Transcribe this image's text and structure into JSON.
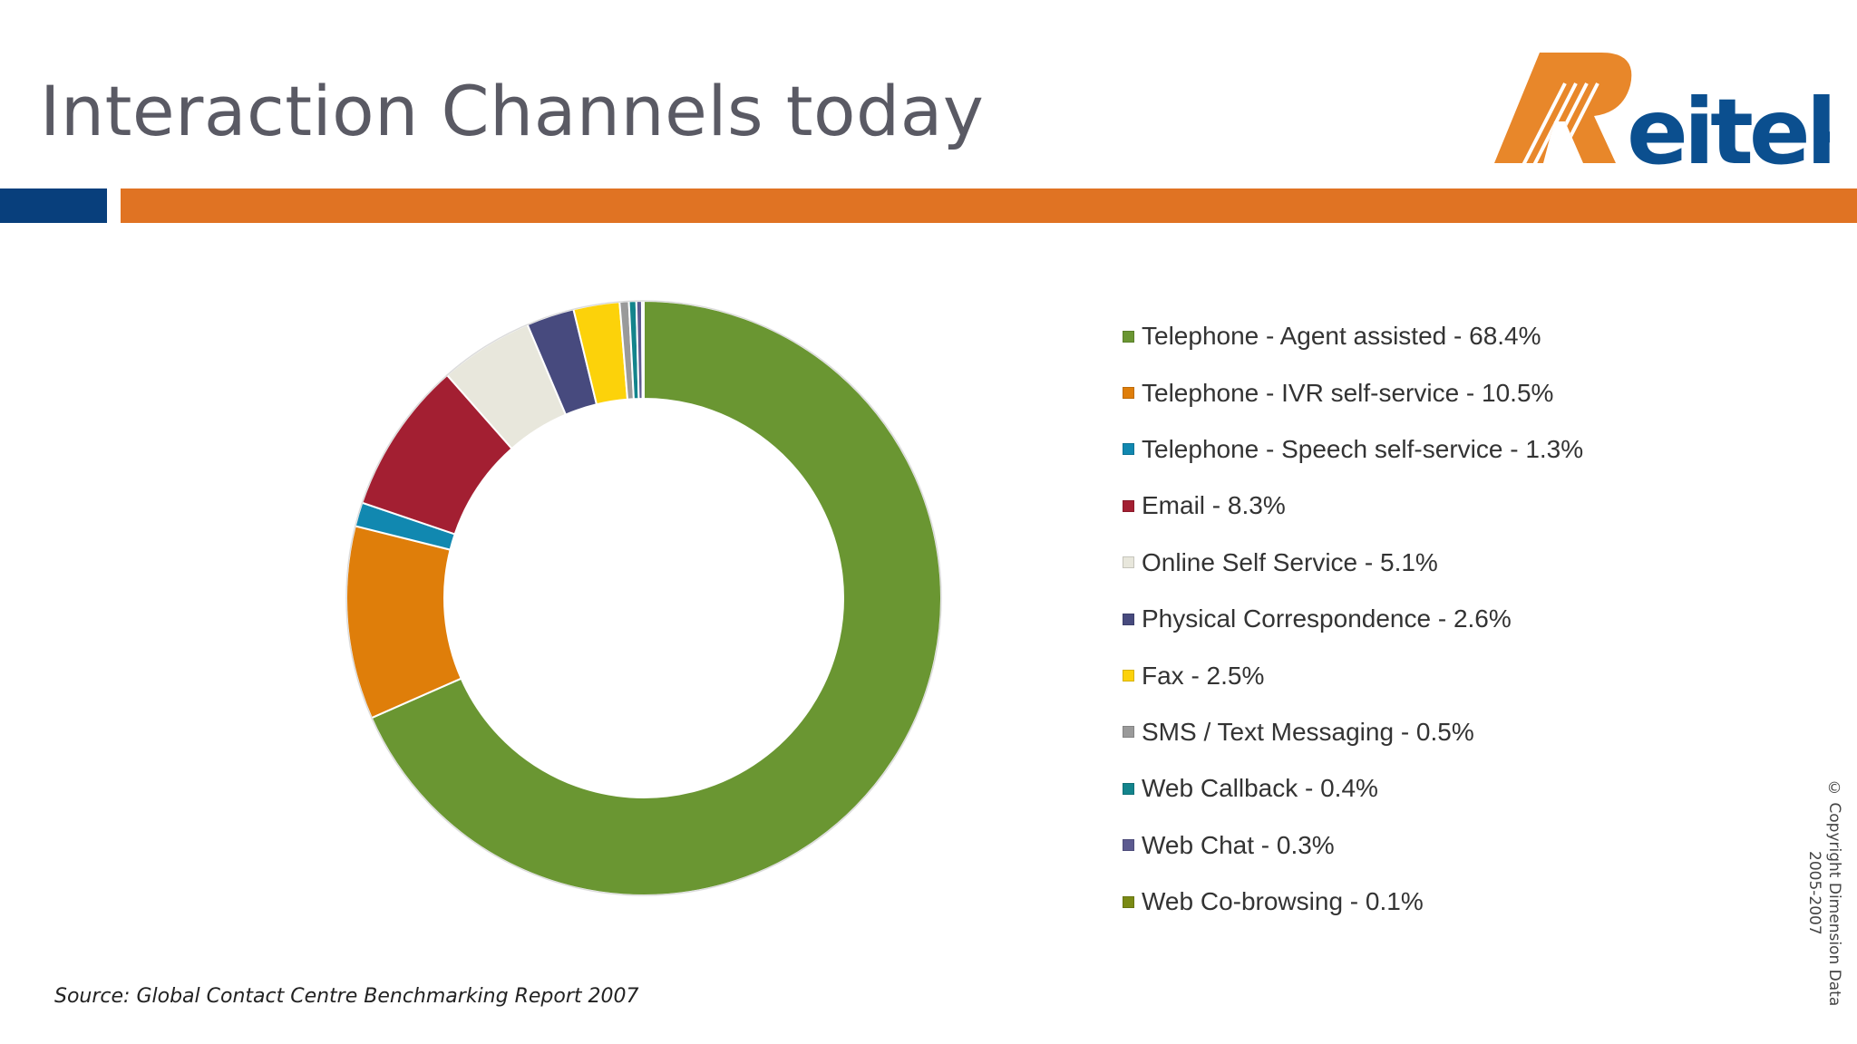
{
  "slide": {
    "title": "Interaction Channels today",
    "source": "Source: Global Contact Centre Benchmarking Report 2007",
    "copyright_line1": "© Copyright Dimension Data",
    "copyright_line2": "2005-2007"
  },
  "logo": {
    "text": "Reitek",
    "colors": {
      "orange": "#e8872a",
      "blue": "#0b4f8f"
    }
  },
  "colors": {
    "header_blue": "#083f7c",
    "header_orange": "#e07323"
  },
  "chart_data": {
    "type": "donut",
    "categories": [
      "Telephone - Agent assisted",
      "Telephone - IVR self-service",
      "Telephone - Speech self-service",
      "Email",
      "Online Self Service",
      "Physical Correspondence",
      "Fax",
      "SMS / Text Messaging",
      "Web Callback",
      "Web Chat",
      "Web Co-browsing"
    ],
    "values": [
      68.4,
      10.5,
      1.3,
      8.3,
      5.1,
      2.6,
      2.5,
      0.5,
      0.4,
      0.3,
      0.1
    ],
    "labels": [
      "Telephone - Agent assisted - 68.4%",
      "Telephone - IVR self-service - 10.5%",
      "Telephone - Speech self-service - 1.3%",
      "Email - 8.3%",
      "Online Self Service - 5.1%",
      "Physical Correspondence - 2.6%",
      "Fax - 2.5%",
      "SMS / Text Messaging - 0.5%",
      "Web Callback - 0.4%",
      "Web Chat - 0.3%",
      "Web Co-browsing - 0.1%"
    ],
    "colors": [
      "#6a9632",
      "#df7e0a",
      "#1188b0",
      "#a31f32",
      "#e8e7dc",
      "#474a7e",
      "#fcd20a",
      "#9a9a9a",
      "#13848c",
      "#5c5a90",
      "#7a8a14"
    ],
    "legend_position": "right"
  }
}
